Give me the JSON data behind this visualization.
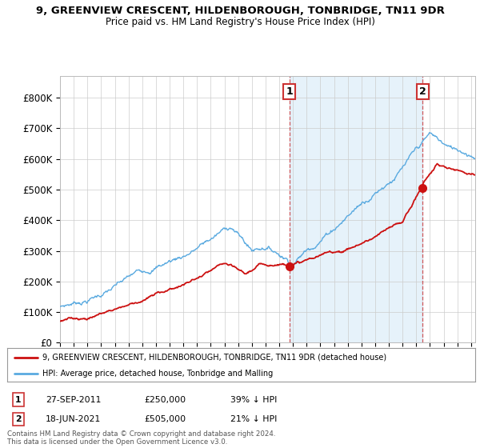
{
  "title": "9, GREENVIEW CRESCENT, HILDENBOROUGH, TONBRIDGE, TN11 9DR",
  "subtitle": "Price paid vs. HM Land Registry's House Price Index (HPI)",
  "hpi_color": "#5aaae0",
  "hpi_fill_color": "#ddeeff",
  "price_color": "#cc1111",
  "dashed_line_color": "#cc3333",
  "ylim": [
    0,
    870000
  ],
  "yticks": [
    0,
    100000,
    200000,
    300000,
    400000,
    500000,
    600000,
    700000,
    800000
  ],
  "ytick_labels": [
    "£0",
    "£100K",
    "£200K",
    "£300K",
    "£400K",
    "£500K",
    "£600K",
    "£700K",
    "£800K"
  ],
  "xlim_start": 1995.0,
  "xlim_end": 2025.3,
  "transaction1_date": 2011.75,
  "transaction1_price": 250000,
  "transaction1_label": "1",
  "transaction2_date": 2021.46,
  "transaction2_price": 505000,
  "transaction2_label": "2",
  "legend_line1": "9, GREENVIEW CRESCENT, HILDENBOROUGH, TONBRIDGE, TN11 9DR (detached house)",
  "legend_line2": "HPI: Average price, detached house, Tonbridge and Malling",
  "table_row1": [
    "1",
    "27-SEP-2011",
    "£250,000",
    "39% ↓ HPI"
  ],
  "table_row2": [
    "2",
    "18-JUN-2021",
    "£505,000",
    "21% ↓ HPI"
  ],
  "footnote": "Contains HM Land Registry data © Crown copyright and database right 2024.\nThis data is licensed under the Open Government Licence v3.0.",
  "background_color": "#ffffff",
  "grid_color": "#cccccc"
}
